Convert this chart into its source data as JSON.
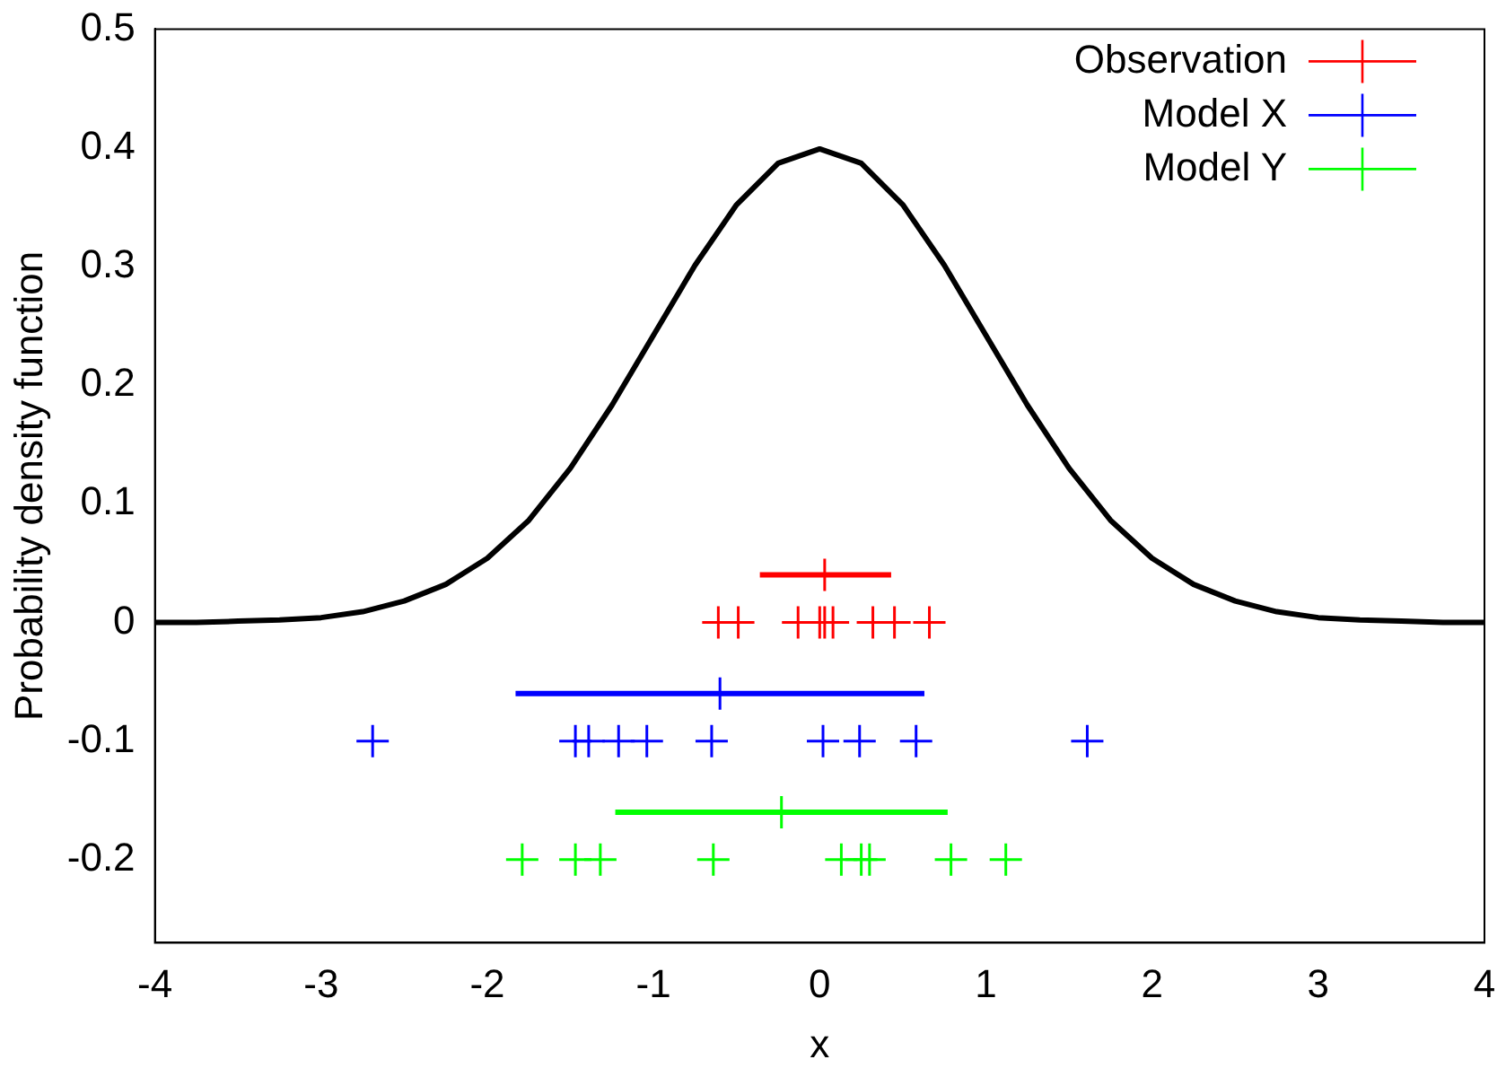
{
  "chart_data": {
    "type": "scatter",
    "xlabel": "x",
    "ylabel": "Probability density function",
    "xlim": [
      -4,
      4
    ],
    "ylim": [
      -0.27,
      0.5
    ],
    "xticks": [
      -4,
      -3,
      -2,
      -1,
      0,
      1,
      2,
      3,
      4
    ],
    "yticks": [
      -0.2,
      -0.1,
      0,
      0.1,
      0.2,
      0.3,
      0.4,
      0.5
    ],
    "grid": false,
    "legend": "top right",
    "marker": "cross",
    "series": [
      {
        "type": "line",
        "color": "#000000",
        "marker": "none",
        "x": [
          -4,
          -3.75,
          -3.5,
          -3.25,
          -3,
          -2.75,
          -2.5,
          -2.25,
          -2,
          -1.75,
          -1.5,
          -1.25,
          -1,
          -0.75,
          -0.5,
          -0.25,
          0,
          0.25,
          0.5,
          0.75,
          1,
          1.25,
          1.5,
          1.75,
          2,
          2.25,
          2.5,
          2.75,
          3,
          3.25,
          3.5,
          3.75,
          4
        ],
        "values": [
          0,
          0,
          0.001,
          0.002,
          0.004,
          0.009,
          0.018,
          0.032,
          0.054,
          0.086,
          0.13,
          0.183,
          0.242,
          0.301,
          0.352,
          0.387,
          0.399,
          0.387,
          0.352,
          0.301,
          0.242,
          0.183,
          0.13,
          0.086,
          0.054,
          0.032,
          0.018,
          0.009,
          0.004,
          0.002,
          0.001,
          0,
          0
        ]
      },
      {
        "name": "Observation",
        "color": "#ff0000",
        "x": [
          -0.61,
          -0.49,
          -0.13,
          0,
          0.03,
          0.08,
          0.32,
          0.45,
          0.66
        ],
        "values": [
          0,
          0,
          0,
          0,
          0,
          0,
          0,
          0,
          0
        ]
      },
      {
        "color": "#ff0000",
        "x": [
          0.03
        ],
        "values": [
          0.04
        ],
        "xerrors": [
          [
            -0.36,
            0.43
          ]
        ]
      },
      {
        "name": "Model X",
        "color": "#0000ff",
        "x": [
          -2.69,
          -1.47,
          -1.39,
          -1.21,
          -1.04,
          -0.65,
          0.02,
          0.24,
          0.58,
          1.61
        ],
        "values": [
          -0.1,
          -0.1,
          -0.1,
          -0.1,
          -0.1,
          -0.1,
          -0.1,
          -0.1,
          -0.1,
          -0.1
        ]
      },
      {
        "color": "#0000ff",
        "x": [
          -0.6
        ],
        "values": [
          -0.06
        ],
        "xerrors": [
          [
            -1.83,
            0.63
          ]
        ]
      },
      {
        "name": "Model Y",
        "color": "#00ff00",
        "x": [
          -1.79,
          -1.47,
          -1.32,
          -0.64,
          0.13,
          0.25,
          0.3,
          0.79,
          1.12
        ],
        "values": [
          -0.2,
          -0.2,
          -0.2,
          -0.2,
          -0.2,
          -0.2,
          -0.2,
          -0.2,
          -0.2
        ]
      },
      {
        "color": "#00ff00",
        "x": [
          -0.23
        ],
        "values": [
          -0.16
        ],
        "xerrors": [
          [
            -1.23,
            0.77
          ]
        ]
      }
    ]
  }
}
